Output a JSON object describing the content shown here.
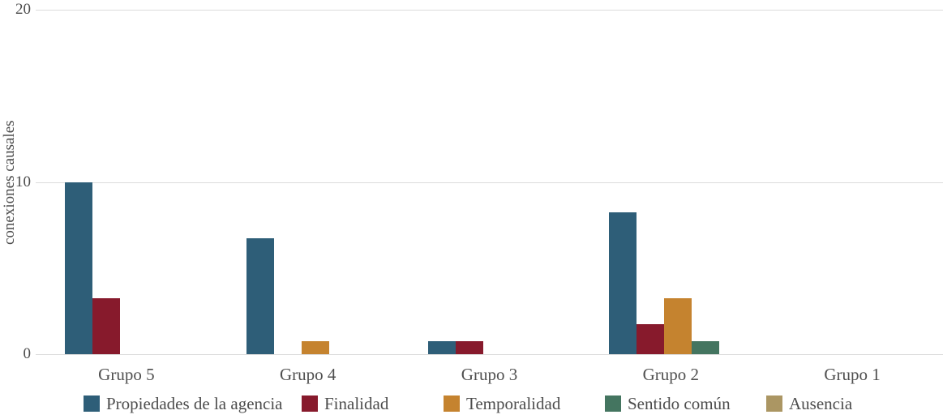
{
  "palette": {
    "background": "#ffffff",
    "gridline": "#dcdcdc",
    "axis_text": "#4c4c4c",
    "label_text": "#4f4f4f"
  },
  "chart_data": {
    "type": "bar",
    "title": "",
    "xlabel": "",
    "ylabel": "conexiones causales",
    "ylim": [
      0,
      20
    ],
    "yticks": [
      0,
      10,
      20
    ],
    "grid": "horizontal",
    "legend_position": "bottom",
    "categories": [
      "Grupo 5",
      "Grupo 4",
      "Grupo 3",
      "Grupo 2",
      "Grupo 1"
    ],
    "series": [
      {
        "name": "Propiedades de la agencia",
        "color": "#2e5e78",
        "values": [
          10,
          6.75,
          0.75,
          8.25,
          0
        ]
      },
      {
        "name": "Finalidad",
        "color": "#871a2c",
        "values": [
          3.25,
          0,
          0.75,
          1.75,
          0
        ]
      },
      {
        "name": "Temporalidad",
        "color": "#c5832f",
        "values": [
          0,
          0.75,
          0,
          3.25,
          0
        ]
      },
      {
        "name": "Sentido común",
        "color": "#447560",
        "values": [
          0,
          0,
          0,
          0.75,
          0
        ]
      },
      {
        "name": "Ausencia",
        "color": "#ab9663",
        "values": [
          0,
          0,
          0,
          0,
          0
        ]
      }
    ]
  }
}
